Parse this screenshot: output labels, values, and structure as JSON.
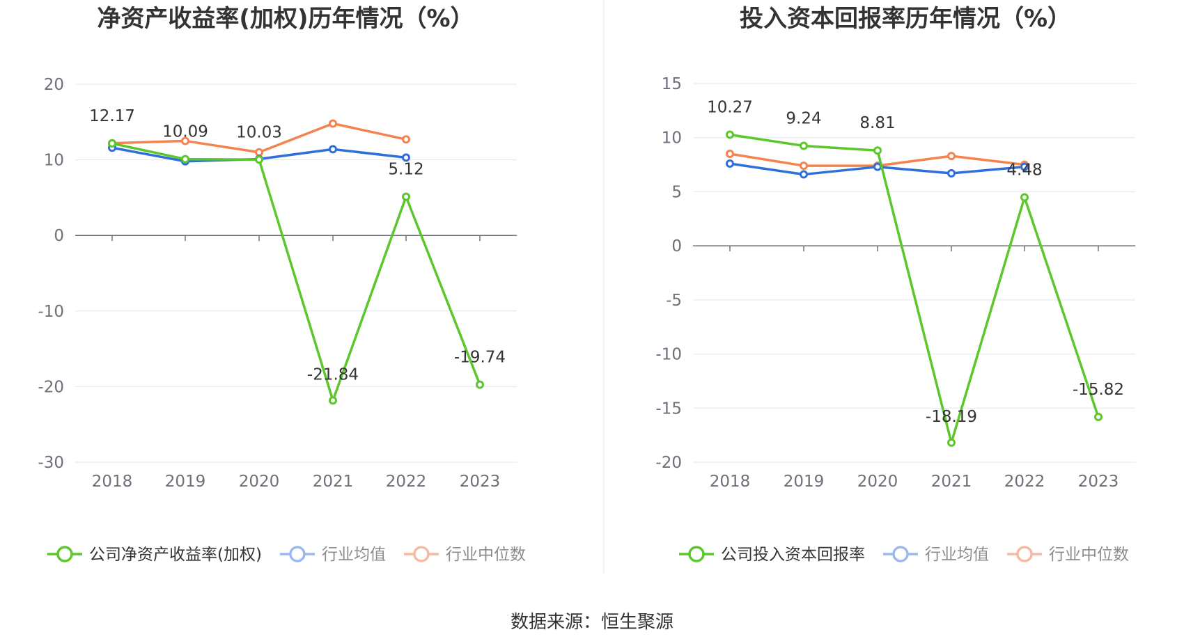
{
  "source_label": "数据来源：恒生聚源",
  "chart_data": [
    {
      "type": "line",
      "title": "净资产收益率(加权)历年情况（%）",
      "categories": [
        "2018",
        "2019",
        "2020",
        "2021",
        "2022",
        "2023"
      ],
      "ylim": [
        -30,
        20
      ],
      "yticks": [
        20,
        10,
        0,
        -10,
        -20,
        -30
      ],
      "grid": true,
      "legend_position": "bottom",
      "series": [
        {
          "name": "公司净资产收益率(加权)",
          "color": "#5bc72a",
          "values": [
            12.17,
            10.09,
            10.03,
            -21.84,
            5.12,
            -19.74
          ],
          "labels": [
            "12.17",
            "10.09",
            "10.03",
            "-21.84",
            "5.12",
            "-19.74"
          ]
        },
        {
          "name": "行业均值",
          "color": "#2e6fdc",
          "values": [
            11.6,
            9.8,
            10.1,
            11.4,
            10.3,
            null
          ]
        },
        {
          "name": "行业中位数",
          "color": "#f5834f",
          "values": [
            12.2,
            12.5,
            11.0,
            14.8,
            12.7,
            null
          ]
        }
      ]
    },
    {
      "type": "line",
      "title": "投入资本回报率历年情况（%）",
      "categories": [
        "2018",
        "2019",
        "2020",
        "2021",
        "2022",
        "2023"
      ],
      "ylim": [
        -20,
        15
      ],
      "yticks": [
        15,
        10,
        5,
        0,
        -5,
        -10,
        -15,
        -20
      ],
      "grid": true,
      "legend_position": "bottom",
      "series": [
        {
          "name": "公司投入资本回报率",
          "color": "#5bc72a",
          "values": [
            10.27,
            9.24,
            8.81,
            -18.19,
            4.48,
            -15.82
          ],
          "labels": [
            "10.27",
            "9.24",
            "8.81",
            "-18.19",
            "4.48",
            "-15.82"
          ]
        },
        {
          "name": "行业均值",
          "color": "#2e6fdc",
          "values": [
            7.6,
            6.6,
            7.3,
            6.7,
            7.3,
            null
          ]
        },
        {
          "name": "行业中位数",
          "color": "#f5834f",
          "values": [
            8.5,
            7.4,
            7.4,
            8.3,
            7.5,
            null
          ]
        }
      ]
    }
  ]
}
